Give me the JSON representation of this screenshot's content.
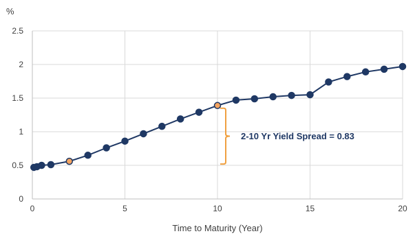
{
  "chart_data": {
    "type": "line",
    "title": "",
    "xlabel": "Time to Maturity (Year)",
    "ylabel": "%",
    "xlim": [
      0,
      20
    ],
    "ylim": [
      0,
      2.5
    ],
    "x_ticks": [
      "0",
      "5",
      "10",
      "15",
      "20"
    ],
    "y_ticks": [
      "0",
      "0.5",
      "1",
      "1.5",
      "2",
      "2.5"
    ],
    "grid": true,
    "legend": "none",
    "series": [
      {
        "color": "#1f3864",
        "points": [
          {
            "x": 0.083,
            "y": 0.47
          },
          {
            "x": 0.25,
            "y": 0.48
          },
          {
            "x": 0.5,
            "y": 0.5
          },
          {
            "x": 1,
            "y": 0.51
          },
          {
            "x": 2,
            "y": 0.56
          },
          {
            "x": 3,
            "y": 0.65
          },
          {
            "x": 4,
            "y": 0.76
          },
          {
            "x": 5,
            "y": 0.86
          },
          {
            "x": 6,
            "y": 0.97
          },
          {
            "x": 7,
            "y": 1.08
          },
          {
            "x": 8,
            "y": 1.19
          },
          {
            "x": 9,
            "y": 1.29
          },
          {
            "x": 10,
            "y": 1.39
          },
          {
            "x": 11,
            "y": 1.47
          },
          {
            "x": 12,
            "y": 1.49
          },
          {
            "x": 13,
            "y": 1.52
          },
          {
            "x": 14,
            "y": 1.54
          },
          {
            "x": 15,
            "y": 1.55
          },
          {
            "x": 16,
            "y": 1.74
          },
          {
            "x": 17,
            "y": 1.82
          },
          {
            "x": 18,
            "y": 1.89
          },
          {
            "x": 19,
            "y": 1.93
          },
          {
            "x": 20,
            "y": 1.97
          }
        ]
      }
    ],
    "highlight": {
      "x": [
        2,
        10
      ],
      "color": "#f4a460"
    },
    "annotation": {
      "text": "2-10 Yr Yield Spread = 0.83",
      "bracket_color": "#f0a040",
      "y_from": 0.56,
      "y_to": 1.39
    },
    "colors": {
      "line": "#1f3864",
      "highlight_fill": "#f4a460",
      "grid": "#d9d9d9",
      "axis": "#bfbfbf"
    }
  }
}
